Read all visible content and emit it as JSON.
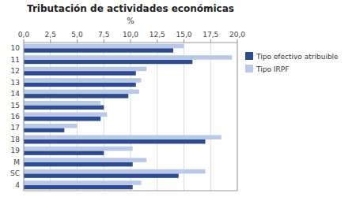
{
  "chart_data": {
    "type": "bar",
    "orientation": "horizontal",
    "title": "Tributación de actividades económicas",
    "xlabel": "%",
    "categories": [
      "10",
      "11",
      "12",
      "13",
      "14",
      "15",
      "16",
      "17",
      "18",
      "19",
      "M",
      "SC",
      "4"
    ],
    "series": [
      {
        "name": "Tipo efectivo atribuible",
        "color": "#2E4B8F",
        "values": [
          14.0,
          15.8,
          10.5,
          10.5,
          9.8,
          7.5,
          7.2,
          3.8,
          17.0,
          7.5,
          10.2,
          14.5,
          10.2
        ]
      },
      {
        "name": "Tipo IRPF",
        "color": "#B8C9E8",
        "values": [
          15.0,
          19.5,
          11.5,
          11.0,
          10.8,
          7.2,
          7.8,
          5.0,
          18.5,
          10.2,
          11.5,
          17.0,
          11.0
        ]
      }
    ],
    "xlim": [
      0,
      20.0
    ],
    "xticks": [
      {
        "value": 0.0,
        "label": "0,0"
      },
      {
        "value": 2.5,
        "label": "2,5"
      },
      {
        "value": 5.0,
        "label": "5,0"
      },
      {
        "value": 7.5,
        "label": "7,5"
      },
      {
        "value": 10.0,
        "label": "10,0"
      },
      {
        "value": 12.5,
        "label": "12,5"
      },
      {
        "value": 15.0,
        "label": "15,0"
      },
      {
        "value": 17.5,
        "label": "17,5"
      },
      {
        "value": 20.0,
        "label": "20,0"
      }
    ],
    "grid": true,
    "legend": "right"
  }
}
